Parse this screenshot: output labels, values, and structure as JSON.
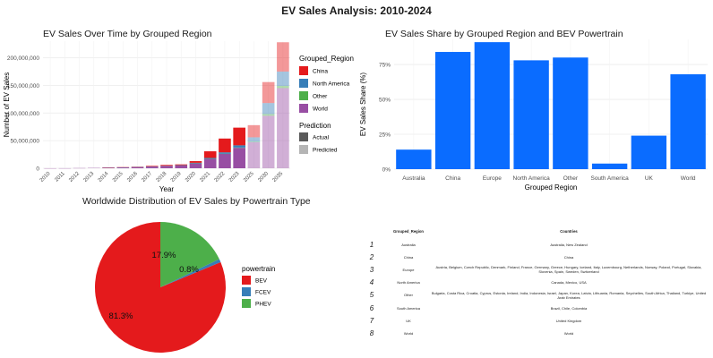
{
  "page_title": "EV Sales Analysis: 2010-2024",
  "chart_data": [
    {
      "type": "bar",
      "title": "EV Sales Over Time by Grouped Region",
      "xlabel": "Year",
      "ylabel": "Number of EV Sales",
      "categories": [
        "2010",
        "2011",
        "2012",
        "2013",
        "2014",
        "2015",
        "2016",
        "2017",
        "2018",
        "2019",
        "2020",
        "2021",
        "2022",
        "2023",
        "2025",
        "2030",
        "2035"
      ],
      "ylim": [
        0,
        230000000
      ],
      "yticks": [
        0,
        50000000,
        100000000,
        150000000,
        200000000
      ],
      "ytick_labels": [
        "0",
        "50,000,000",
        "100,000,000",
        "150,000,000",
        "200,000,000"
      ],
      "stacked": true,
      "series": [
        {
          "name": "World",
          "color": "#984ea3",
          "values": [
            50000,
            100000,
            300000,
            500000,
            1000000,
            1500000,
            2000000,
            3000000,
            4000000,
            5000000,
            9000000,
            17000000,
            26000000,
            37000000,
            47000000,
            95000000,
            145000000
          ]
        },
        {
          "name": "Other",
          "color": "#4daf4a",
          "values": [
            0,
            0,
            0,
            0,
            0,
            0,
            0,
            0,
            0,
            0,
            100000,
            200000,
            300000,
            500000,
            1000000,
            3000000,
            4000000
          ]
        },
        {
          "name": "North America",
          "color": "#377eb8",
          "values": [
            0,
            0,
            0,
            0,
            100000,
            200000,
            300000,
            400000,
            500000,
            600000,
            800000,
            1500000,
            2500000,
            4000000,
            8000000,
            20000000,
            26000000
          ]
        },
        {
          "name": "China",
          "color": "#e41a1c",
          "values": [
            0,
            0,
            0,
            0,
            200000,
            300000,
            500000,
            1000000,
            1500000,
            1400000,
            3000000,
            12000000,
            25000000,
            32000000,
            22000000,
            38000000,
            53000000
          ]
        }
      ],
      "prediction": [
        "Actual",
        "Actual",
        "Actual",
        "Actual",
        "Actual",
        "Actual",
        "Actual",
        "Actual",
        "Actual",
        "Actual",
        "Actual",
        "Actual",
        "Actual",
        "Actual",
        "Predicted",
        "Predicted",
        "Predicted"
      ],
      "legend": {
        "groups_title": "Grouped_Region",
        "groups": [
          {
            "label": "China",
            "color": "#e41a1c"
          },
          {
            "label": "North America",
            "color": "#377eb8"
          },
          {
            "label": "Other",
            "color": "#4daf4a"
          },
          {
            "label": "World",
            "color": "#984ea3"
          }
        ],
        "prediction_title": "Prediction",
        "prediction": [
          {
            "label": "Actual",
            "color": "#5a5a5a"
          },
          {
            "label": "Predicted",
            "color": "#b5b5b5"
          }
        ],
        "placement": "right"
      },
      "grid": true
    },
    {
      "type": "bar",
      "title": "EV Sales Share by Grouped Region and BEV Powertrain",
      "xlabel": "Grouped Region",
      "ylabel": "EV Sales Share (%)",
      "categories": [
        "Australia",
        "China",
        "Europe",
        "North America",
        "Other",
        "South America",
        "UK",
        "World"
      ],
      "values": [
        14,
        84,
        91,
        78,
        80,
        4,
        24,
        68
      ],
      "ylim": [
        0,
        93
      ],
      "yticks": [
        0,
        25,
        50,
        75
      ],
      "ytick_labels": [
        "0%",
        "25%",
        "50%",
        "75%"
      ],
      "color": "#0a6cff",
      "grid": true
    },
    {
      "type": "pie",
      "title": "Worldwide Distribution of EV Sales by Powertrain Type",
      "slices": [
        {
          "label": "BEV",
          "value": 81.3,
          "text": "81.3%",
          "color": "#e41a1c"
        },
        {
          "label": "FCEV",
          "value": 0.8,
          "text": "0.8%",
          "color": "#377eb8"
        },
        {
          "label": "PHEV",
          "value": 17.9,
          "text": "17.9%",
          "color": "#4daf4a"
        }
      ],
      "legend_title": "powertrain",
      "legend_placement": "right"
    },
    {
      "type": "table",
      "columns": [
        "Grouped_Region",
        "Countries"
      ],
      "rows": [
        {
          "n": "1",
          "region": "Australia",
          "countries": "Australia, New Zealand"
        },
        {
          "n": "2",
          "region": "China",
          "countries": "China"
        },
        {
          "n": "3",
          "region": "Europe",
          "countries": "Austria, Belgium, Czech Republic, Denmark, Finland, France, Germany, Greece, Hungary, Iceland, Italy, Luxembourg, Netherlands, Norway, Poland, Portugal, Slovakia, Slovenia, Spain, Sweden, Switzerland"
        },
        {
          "n": "4",
          "region": "North America",
          "countries": "Canada, Mexico, USA"
        },
        {
          "n": "5",
          "region": "Other",
          "countries": "Bulgaria, Costa Rica, Croatia, Cyprus, Estonia, Ireland, India, Indonesia, Israel, Japan, Korea, Latvia, Lithuania, Romania, Seychelles, South Africa, Thailand, Turkiye, United Arab Emirates"
        },
        {
          "n": "6",
          "region": "South America",
          "countries": "Brazil, Chile, Colombia"
        },
        {
          "n": "7",
          "region": "UK",
          "countries": "United Kingdom"
        },
        {
          "n": "8",
          "region": "World",
          "countries": "World"
        }
      ]
    }
  ]
}
